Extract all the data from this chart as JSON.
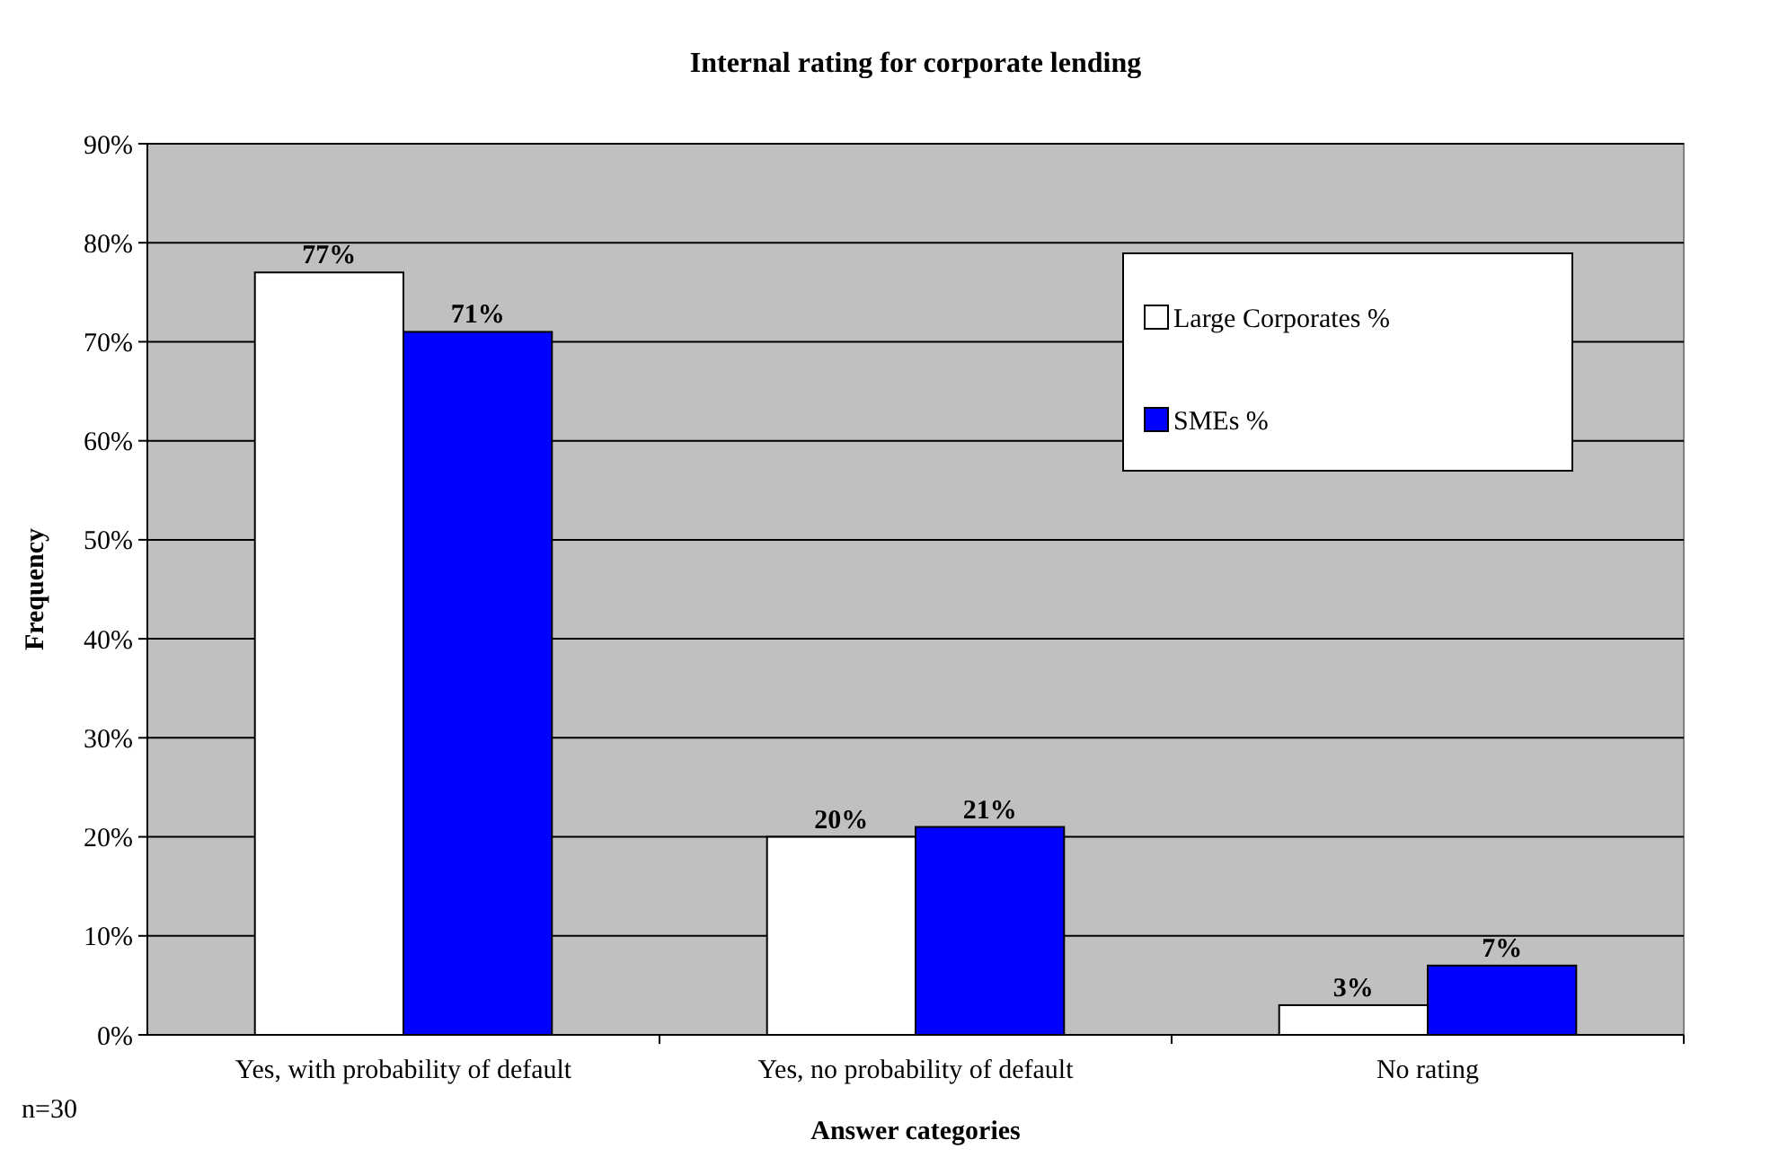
{
  "chart_data": {
    "type": "bar",
    "title": "Internal rating for corporate lending",
    "xlabel": "Answer categories",
    "ylabel": "Frequency",
    "categories": [
      "Yes, with probability of default",
      "Yes, no probability of default",
      "No rating"
    ],
    "series": [
      {
        "name": "Large Corporates %",
        "color": "#ffffff",
        "values": [
          77,
          20,
          3
        ],
        "value_labels": [
          "77%",
          "20%",
          "3%"
        ]
      },
      {
        "name": "SMEs %",
        "color": "#0000ff",
        "values": [
          71,
          21,
          7
        ],
        "value_labels": [
          "71%",
          "21%",
          "7%"
        ]
      }
    ],
    "ylim": [
      0,
      90
    ],
    "yticks": [
      {
        "value": 0,
        "label": "0%"
      },
      {
        "value": 10,
        "label": "10%"
      },
      {
        "value": 20,
        "label": "20%"
      },
      {
        "value": 30,
        "label": "30%"
      },
      {
        "value": 40,
        "label": "40%"
      },
      {
        "value": 50,
        "label": "50%"
      },
      {
        "value": 60,
        "label": "60%"
      },
      {
        "value": 70,
        "label": "70%"
      },
      {
        "value": 80,
        "label": "80%"
      },
      {
        "value": 90,
        "label": "90%"
      }
    ],
    "grid": "y",
    "legend": "top right",
    "annotations": [
      "n=30"
    ]
  }
}
